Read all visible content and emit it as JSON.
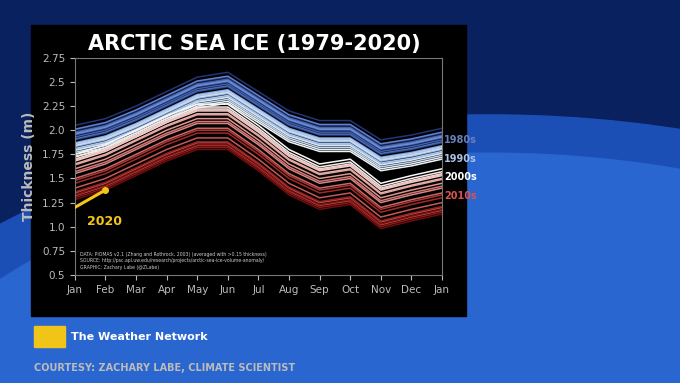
{
  "chart_data": {
    "type": "line",
    "title": "ARCTIC SEA ICE (1979-2020)",
    "y_label": "Thickness (m)",
    "categories": [
      "Jan",
      "Feb",
      "Mar",
      "Apr",
      "May",
      "Jun",
      "Jul",
      "Aug",
      "Sep",
      "Oct",
      "Nov",
      "Dec",
      "Jan"
    ],
    "ylim": [
      0.5,
      2.75
    ],
    "yticks": [
      0.5,
      0.75,
      {
        "value": 1,
        "label": "1.0"
      },
      1.25,
      1.5,
      1.75,
      {
        "value": 2,
        "label": "2.0"
      },
      2.25,
      2.5,
      2.75
    ],
    "grid": false,
    "series": [
      {
        "color": "#1f2a6b",
        "values": [
          2.0,
          2.07,
          2.2,
          2.35,
          2.5,
          2.55,
          2.35,
          2.15,
          2.05,
          2.05,
          1.85,
          1.9,
          1.97
        ]
      },
      {
        "color": "#24337a",
        "values": [
          2.05,
          2.12,
          2.25,
          2.4,
          2.55,
          2.6,
          2.4,
          2.2,
          2.1,
          2.1,
          1.9,
          1.95,
          2.02
        ]
      },
      {
        "color": "#2a3d88",
        "values": [
          1.9,
          1.97,
          2.1,
          2.25,
          2.4,
          2.45,
          2.25,
          2.05,
          1.95,
          1.95,
          1.75,
          1.8,
          1.87
        ]
      },
      {
        "color": "#314896",
        "values": [
          1.95,
          2.02,
          2.15,
          2.3,
          2.45,
          2.5,
          2.3,
          2.1,
          2.0,
          2.0,
          1.8,
          1.85,
          1.92
        ]
      },
      {
        "color": "#3853a3",
        "values": [
          1.98,
          2.05,
          2.18,
          2.33,
          2.48,
          2.53,
          2.33,
          2.13,
          2.03,
          2.03,
          1.83,
          1.88,
          1.95
        ]
      },
      {
        "color": "#405fae",
        "values": [
          1.93,
          2.0,
          2.13,
          2.28,
          2.43,
          2.48,
          2.28,
          2.08,
          1.98,
          1.98,
          1.78,
          1.83,
          1.9
        ]
      },
      {
        "color": "#4a6bb8",
        "values": [
          1.91,
          1.98,
          2.11,
          2.26,
          2.41,
          2.46,
          2.26,
          2.06,
          1.96,
          1.96,
          1.76,
          1.81,
          1.88
        ]
      },
      {
        "color": "#5577c1",
        "values": [
          1.97,
          2.04,
          2.17,
          2.32,
          2.47,
          2.52,
          2.32,
          2.12,
          2.02,
          2.02,
          1.82,
          1.87,
          1.94
        ]
      },
      {
        "color": "#6083c9",
        "values": [
          2.01,
          2.08,
          2.21,
          2.36,
          2.51,
          2.56,
          2.36,
          2.16,
          2.06,
          2.06,
          1.86,
          1.91,
          1.98
        ]
      },
      {
        "color": "#6c8fd0",
        "values": [
          1.96,
          2.03,
          2.16,
          2.31,
          2.46,
          2.51,
          2.31,
          2.11,
          2.01,
          2.01,
          1.81,
          1.86,
          1.93
        ]
      },
      {
        "color": "#789bd6",
        "values": [
          1.87,
          1.94,
          2.07,
          2.22,
          2.37,
          2.42,
          2.22,
          2.02,
          1.92,
          1.92,
          1.72,
          1.77,
          1.84
        ]
      },
      {
        "color": "#85a6dc",
        "values": [
          1.83,
          1.9,
          2.03,
          2.18,
          2.33,
          2.38,
          2.18,
          1.98,
          1.88,
          1.88,
          1.68,
          1.73,
          1.8
        ]
      },
      {
        "color": "#91b1e1",
        "values": [
          1.8,
          1.87,
          2.0,
          2.15,
          2.3,
          2.35,
          2.15,
          1.95,
          1.85,
          1.85,
          1.65,
          1.7,
          1.77
        ]
      },
      {
        "color": "#9dbbe5",
        "values": [
          1.85,
          1.92,
          2.05,
          2.2,
          2.35,
          2.4,
          2.2,
          2.0,
          1.9,
          1.9,
          1.7,
          1.75,
          1.82
        ]
      },
      {
        "color": "#a9c4e9",
        "values": [
          1.81,
          1.88,
          2.01,
          2.16,
          2.31,
          2.36,
          2.16,
          1.96,
          1.86,
          1.86,
          1.66,
          1.71,
          1.78
        ]
      },
      {
        "color": "#b5cdec",
        "values": [
          1.86,
          1.93,
          2.06,
          2.21,
          2.36,
          2.41,
          2.21,
          2.01,
          1.91,
          1.91,
          1.71,
          1.76,
          1.83
        ]
      },
      {
        "color": "#c1d6ef",
        "values": [
          1.77,
          1.84,
          1.97,
          2.12,
          2.27,
          2.32,
          2.12,
          1.92,
          1.82,
          1.82,
          1.62,
          1.67,
          1.74
        ]
      },
      {
        "color": "#cddff2",
        "values": [
          1.84,
          1.91,
          2.04,
          2.19,
          2.34,
          2.39,
          2.19,
          1.99,
          1.89,
          1.89,
          1.69,
          1.74,
          1.81
        ]
      },
      {
        "color": "#d8e6f4",
        "values": [
          1.79,
          1.86,
          1.99,
          2.14,
          2.29,
          2.34,
          2.14,
          1.94,
          1.84,
          1.84,
          1.64,
          1.69,
          1.76
        ]
      },
      {
        "color": "#e3edf6",
        "values": [
          1.75,
          1.82,
          1.95,
          2.1,
          2.25,
          2.3,
          2.1,
          1.9,
          1.8,
          1.8,
          1.6,
          1.65,
          1.72
        ]
      },
      {
        "color": "#eef3f8",
        "values": [
          1.73,
          1.8,
          1.93,
          2.08,
          2.23,
          2.28,
          2.08,
          1.88,
          1.78,
          1.78,
          1.58,
          1.63,
          1.7
        ]
      },
      {
        "color": "#f8f8f8",
        "values": [
          1.75,
          1.85,
          2.0,
          2.15,
          2.27,
          2.27,
          2.05,
          1.8,
          1.65,
          1.7,
          1.45,
          1.53,
          1.6
        ]
      },
      {
        "color": "#f6ebe9",
        "values": [
          1.72,
          1.82,
          1.97,
          2.12,
          2.24,
          2.24,
          2.02,
          1.77,
          1.62,
          1.67,
          1.42,
          1.5,
          1.57
        ]
      },
      {
        "color": "#f3dedb",
        "values": [
          1.7,
          1.8,
          1.95,
          2.1,
          2.22,
          2.22,
          2.0,
          1.75,
          1.6,
          1.65,
          1.4,
          1.48,
          1.55
        ]
      },
      {
        "color": "#f0d0cc",
        "values": [
          1.68,
          1.78,
          1.93,
          2.08,
          2.2,
          2.2,
          1.98,
          1.73,
          1.58,
          1.63,
          1.38,
          1.46,
          1.53
        ]
      },
      {
        "color": "#ecc2bd",
        "values": [
          1.69,
          1.79,
          1.94,
          2.09,
          2.21,
          2.21,
          1.99,
          1.74,
          1.59,
          1.64,
          1.39,
          1.47,
          1.54
        ]
      },
      {
        "color": "#e8b3ae",
        "values": [
          1.65,
          1.75,
          1.9,
          2.05,
          2.17,
          2.17,
          1.95,
          1.7,
          1.55,
          1.6,
          1.35,
          1.43,
          1.5
        ]
      },
      {
        "color": "#e3a49f",
        "values": [
          1.64,
          1.74,
          1.89,
          2.04,
          2.16,
          2.16,
          1.94,
          1.69,
          1.54,
          1.59,
          1.34,
          1.42,
          1.49
        ]
      },
      {
        "color": "#de9590",
        "values": [
          1.6,
          1.7,
          1.85,
          2.0,
          2.12,
          2.12,
          1.9,
          1.65,
          1.5,
          1.55,
          1.3,
          1.38,
          1.45
        ]
      },
      {
        "color": "#d88581",
        "values": [
          1.55,
          1.65,
          1.8,
          1.95,
          2.07,
          2.07,
          1.85,
          1.6,
          1.45,
          1.5,
          1.25,
          1.33,
          1.4
        ]
      },
      {
        "color": "#d27672",
        "values": [
          1.57,
          1.67,
          1.82,
          1.97,
          2.09,
          2.09,
          1.87,
          1.62,
          1.47,
          1.52,
          1.27,
          1.35,
          1.42
        ]
      },
      {
        "color": "#cb6763",
        "values": [
          1.5,
          1.6,
          1.75,
          1.9,
          2.02,
          2.02,
          1.8,
          1.55,
          1.4,
          1.45,
          1.2,
          1.28,
          1.35
        ]
      },
      {
        "color": "#c45955",
        "values": [
          1.4,
          1.5,
          1.65,
          1.8,
          1.92,
          1.92,
          1.7,
          1.45,
          1.3,
          1.35,
          1.1,
          1.18,
          1.25
        ]
      },
      {
        "color": "#bc4b48",
        "values": [
          1.35,
          1.45,
          1.6,
          1.75,
          1.87,
          1.87,
          1.65,
          1.4,
          1.25,
          1.3,
          1.05,
          1.13,
          1.2
        ]
      },
      {
        "color": "#b33f3c",
        "values": [
          1.32,
          1.42,
          1.57,
          1.72,
          1.84,
          1.84,
          1.62,
          1.37,
          1.22,
          1.27,
          1.02,
          1.1,
          1.17
        ]
      },
      {
        "color": "#a93431",
        "values": [
          1.48,
          1.58,
          1.73,
          1.88,
          2.0,
          2.0,
          1.78,
          1.53,
          1.38,
          1.43,
          1.18,
          1.26,
          1.33
        ]
      },
      {
        "color": "#9e2a28",
        "values": [
          1.45,
          1.55,
          1.7,
          1.85,
          1.97,
          1.97,
          1.75,
          1.5,
          1.35,
          1.4,
          1.15,
          1.23,
          1.3
        ]
      },
      {
        "color": "#93211f",
        "values": [
          1.36,
          1.46,
          1.61,
          1.76,
          1.88,
          1.88,
          1.66,
          1.41,
          1.26,
          1.31,
          1.06,
          1.14,
          1.21
        ]
      },
      {
        "color": "#871918",
        "values": [
          1.3,
          1.4,
          1.55,
          1.7,
          1.82,
          1.82,
          1.6,
          1.35,
          1.2,
          1.25,
          1.0,
          1.08,
          1.15
        ]
      },
      {
        "color": "#7b1212",
        "values": [
          1.33,
          1.43,
          1.58,
          1.73,
          1.85,
          1.85,
          1.63,
          1.38,
          1.23,
          1.28,
          1.03,
          1.11,
          1.18
        ]
      },
      {
        "color": "#6e0c0d",
        "values": [
          1.28,
          1.38,
          1.53,
          1.68,
          1.8,
          1.8,
          1.58,
          1.33,
          1.18,
          1.23,
          0.98,
          1.06,
          1.13
        ]
      },
      {
        "name": "2020",
        "color": "#f5c518",
        "marker": "o",
        "values": [
          1.2,
          1.38,
          null,
          null,
          null,
          null,
          null,
          null,
          null,
          null,
          null,
          null,
          null
        ]
      }
    ],
    "decade_labels": [
      {
        "text": "1980s",
        "color": "#6a7fc0"
      },
      {
        "text": "1990s",
        "color": "#a9c4e9"
      },
      {
        "text": "2000s",
        "color": "#ffffff"
      },
      {
        "text": "2010s",
        "color": "#d9534f"
      }
    ],
    "credits": [
      "DATA: PIOMAS v2.1 (Zhang and Rothrock, 2003) (averaged with >0.15 thickness)",
      "SOURCE: http://psc.apl.uw.edu/research/projects/arctic-sea-ice-volume-anomaly/",
      "GRAPHIC: Zachary Labe (@ZLabe)"
    ],
    "brand": "The Weather Network",
    "courtesy": "COURTESY: ZACHARY LABE, CLIMATE SCIENTIST"
  }
}
